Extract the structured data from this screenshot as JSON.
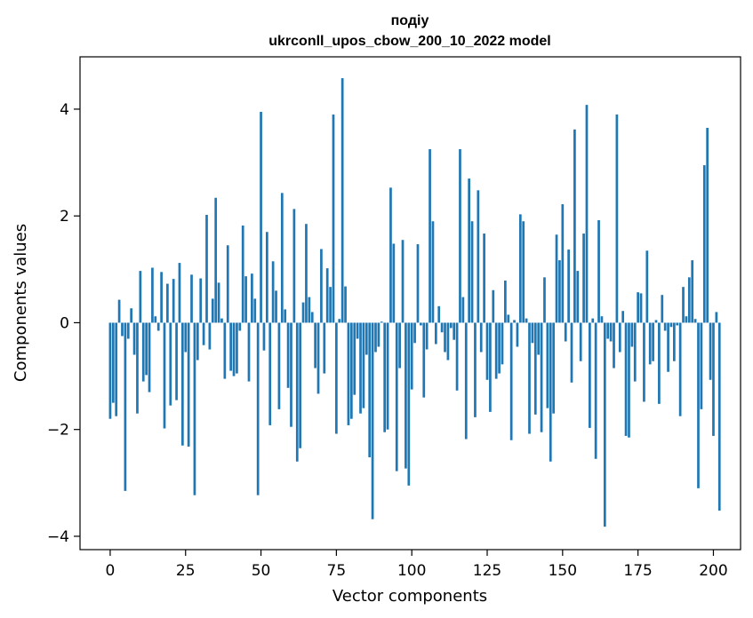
{
  "chart_data": {
    "type": "bar",
    "title_line1": "подіу",
    "title_line2": "ukrconll_upos_cbow_200_10_2022 model",
    "xlabel": "Vector components",
    "ylabel": "Components values",
    "xlim": [
      -10,
      209
    ],
    "ylim": [
      -4.25,
      4.98
    ],
    "xticks": [
      0,
      25,
      50,
      75,
      100,
      125,
      150,
      175,
      200
    ],
    "xtick_labels": [
      "0",
      "25",
      "50",
      "75",
      "100",
      "125",
      "150",
      "175",
      "200"
    ],
    "yticks": [
      -4,
      -2,
      0,
      2,
      4
    ],
    "ytick_labels": [
      "−4",
      "−2",
      "0",
      "2",
      "4"
    ],
    "bar_color": "#1f77b4",
    "grid": false,
    "values": [
      -1.8,
      -1.5,
      -1.75,
      0.43,
      -0.25,
      -3.15,
      -0.3,
      0.27,
      -0.6,
      -1.7,
      0.97,
      -1.1,
      -0.98,
      -1.3,
      1.03,
      0.12,
      -0.15,
      0.95,
      -1.98,
      0.73,
      -1.55,
      0.82,
      -1.45,
      1.12,
      -2.3,
      -0.55,
      -2.32,
      0.9,
      -3.23,
      -0.7,
      0.83,
      -0.42,
      2.02,
      -0.5,
      0.45,
      2.34,
      0.75,
      0.08,
      -1.05,
      1.45,
      -0.9,
      -1.0,
      -0.95,
      -0.15,
      1.82,
      0.87,
      -1.1,
      0.92,
      0.45,
      -3.23,
      3.95,
      -0.52,
      1.7,
      -1.92,
      1.15,
      0.6,
      -1.62,
      2.43,
      0.25,
      -1.22,
      -1.95,
      2.13,
      -2.6,
      -2.35,
      0.38,
      1.85,
      0.48,
      0.2,
      -0.85,
      -1.33,
      1.38,
      -0.95,
      1.02,
      0.67,
      3.9,
      -2.08,
      0.07,
      4.58,
      0.68,
      -1.92,
      -1.8,
      -1.35,
      -0.3,
      -1.7,
      -1.6,
      -0.6,
      -2.52,
      -3.68,
      -0.55,
      -0.45,
      0.02,
      -2.05,
      -2.0,
      2.53,
      1.48,
      -2.78,
      -0.85,
      1.55,
      -2.73,
      -3.05,
      -1.25,
      -0.38,
      1.47,
      -0.05,
      -1.4,
      -0.5,
      3.25,
      1.9,
      -0.4,
      0.31,
      -0.18,
      -0.55,
      -0.7,
      -0.1,
      -0.32,
      -1.27,
      3.25,
      0.48,
      -2.18,
      2.7,
      1.9,
      -1.77,
      2.48,
      -0.55,
      1.67,
      -1.07,
      -1.67,
      0.61,
      -1.05,
      -0.95,
      -0.78,
      0.79,
      0.15,
      -2.2,
      0.05,
      -0.45,
      2.03,
      1.9,
      0.08,
      -2.08,
      -0.38,
      -1.72,
      -0.6,
      -2.05,
      0.85,
      -1.6,
      -2.6,
      -1.7,
      1.65,
      1.17,
      2.22,
      -0.35,
      1.37,
      -1.12,
      3.62,
      0.97,
      -0.72,
      1.67,
      4.08,
      -1.97,
      0.08,
      -2.55,
      1.92,
      0.12,
      -3.82,
      -0.3,
      -0.35,
      -0.85,
      3.9,
      -0.55,
      0.22,
      -2.12,
      -2.15,
      -0.45,
      -1.1,
      0.57,
      0.55,
      -1.48,
      1.35,
      -0.78,
      -0.72,
      0.05,
      -1.52,
      0.52,
      -0.15,
      -0.92,
      -0.08,
      -0.72,
      -0.05,
      -1.75,
      0.67,
      0.12,
      0.85,
      1.17,
      0.07,
      -3.1,
      -1.62,
      2.95,
      3.65,
      -1.07,
      -2.12,
      0.2,
      -3.52
    ]
  }
}
